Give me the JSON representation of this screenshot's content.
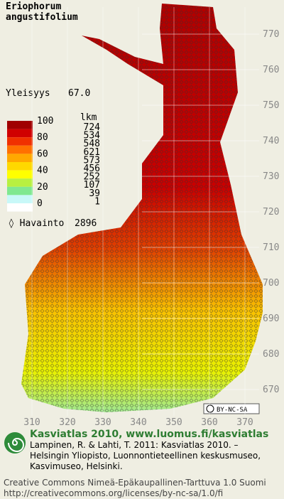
{
  "species": [
    "Eriophorum",
    "angustifolium"
  ],
  "frequency": {
    "label": "Yleisyys",
    "value": "67.0"
  },
  "legend": {
    "scale": [
      "100",
      "80",
      "60",
      "40",
      "20",
      "0"
    ],
    "count_header": "lkm",
    "counts": [
      "724",
      "534",
      "548",
      "621",
      "573",
      "456",
      "252",
      "107",
      "39",
      "1"
    ]
  },
  "observations": {
    "label": "Havainto",
    "value": "2896"
  },
  "y_axis": [
    "770",
    "760",
    "750",
    "740",
    "730",
    "720",
    "710",
    "700",
    "690",
    "680",
    "670"
  ],
  "x_axis": [
    "310",
    "320",
    "330",
    "340",
    "350",
    "360",
    "370"
  ],
  "license_badge": "BY-NC-SA",
  "footer": {
    "title": "Kasviatlas 2010, www.luomus.fi/kasviatlas",
    "citation": [
      "Lampinen, R. & Lahti, T. 2011: Kasviatlas 2010. –",
      "Helsingin Yliopisto, Luonnontieteellinen keskusmuseo,",
      "Kasvimuseo, Helsinki."
    ],
    "license": [
      "Creative Commons Nimeä-Epäkaupallinen-Tarttuva 1.0 Suomi",
      "http://creativecommons.org/licenses/by-nc-sa/1.0/fi"
    ]
  }
}
